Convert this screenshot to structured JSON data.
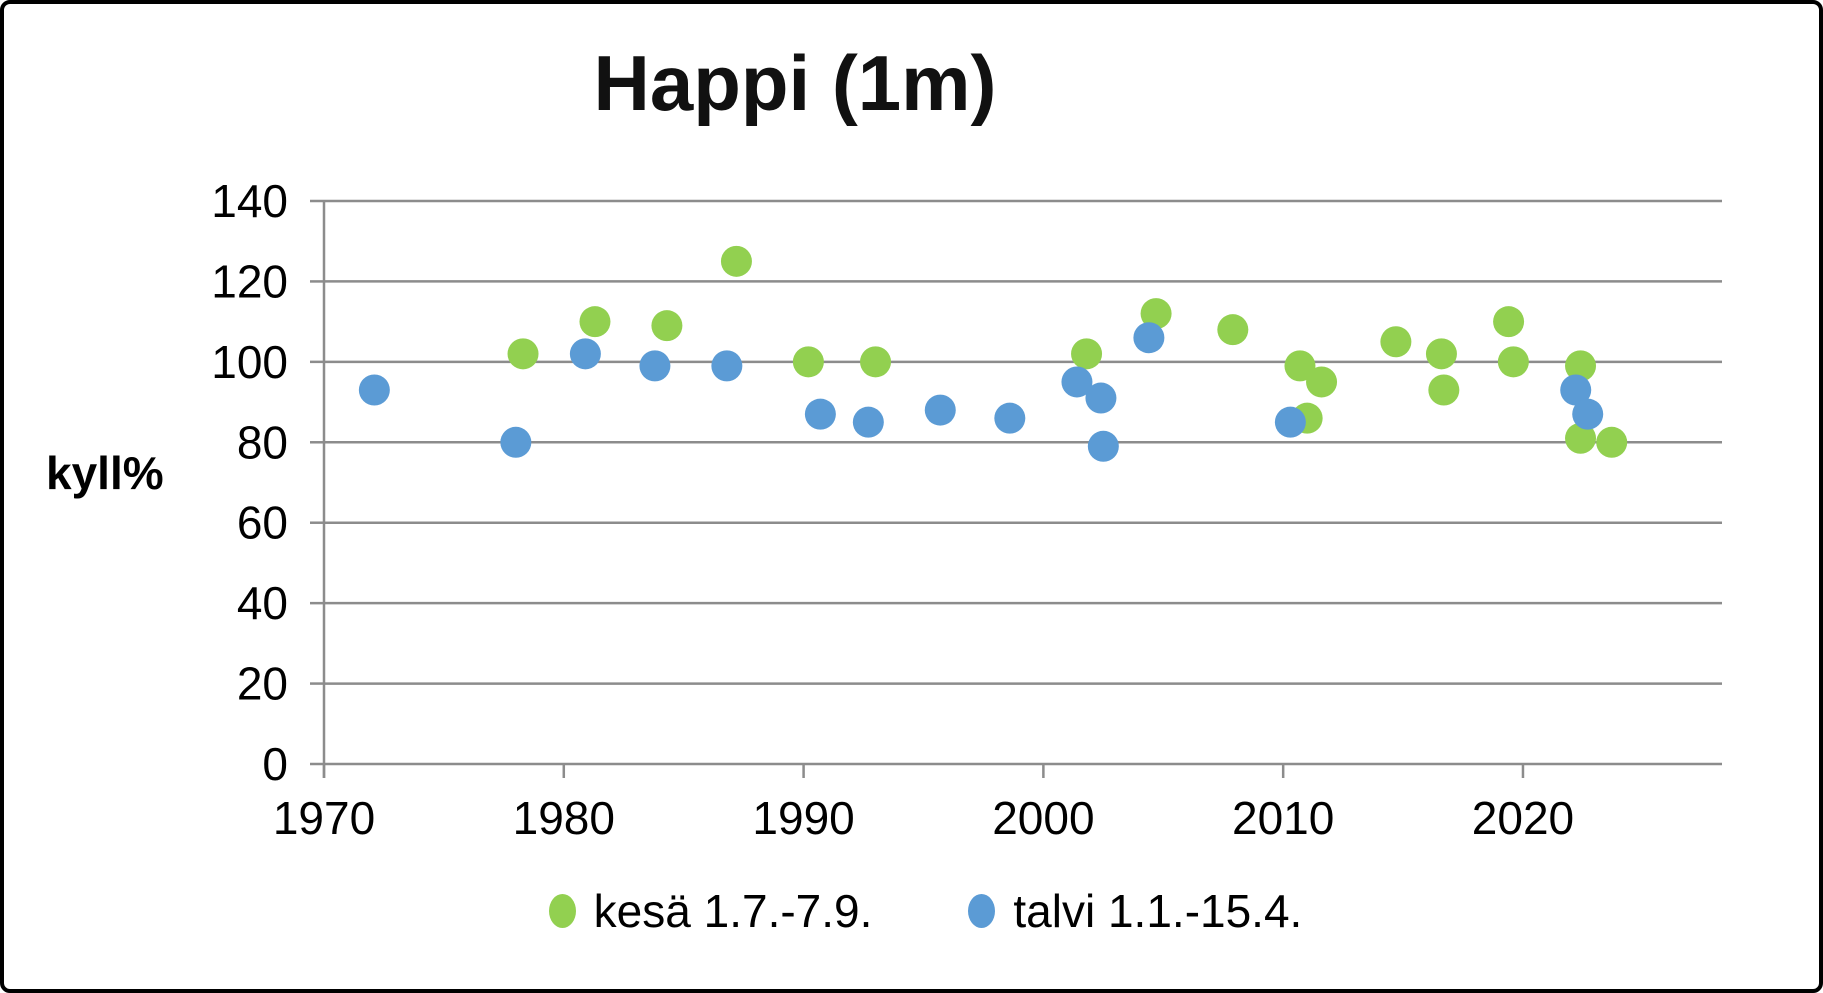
{
  "chart": {
    "title": "Happi (1m)",
    "y_axis_label": "kyll%",
    "legend": [
      {
        "label": "kesä 1.7.-7.9.",
        "color": "#92D050"
      },
      {
        "label": "talvi 1.1.-15.4.",
        "color": "#5B9BD5"
      }
    ]
  },
  "chart_data": {
    "type": "scatter",
    "title": "Happi (1m)",
    "xlabel": "",
    "ylabel": "kyll%",
    "xlim": [
      1970,
      2028.3
    ],
    "ylim": [
      0,
      140
    ],
    "x_ticks": [
      1970,
      1980,
      1990,
      2000,
      2010,
      2020
    ],
    "y_ticks": [
      0,
      20,
      40,
      60,
      80,
      100,
      120,
      140
    ],
    "grid": true,
    "gridline_color": "#8C8C8C",
    "legend_position": "bottom",
    "marker_radius": 15.5,
    "series": [
      {
        "name": "kesä 1.7.-7.9.",
        "color": "#92D050",
        "points": [
          [
            1978.3,
            102
          ],
          [
            1981.3,
            110
          ],
          [
            1984.3,
            109
          ],
          [
            1987.2,
            125
          ],
          [
            1990.2,
            100
          ],
          [
            1993.0,
            100
          ],
          [
            2001.8,
            102
          ],
          [
            2004.7,
            112
          ],
          [
            2007.9,
            108
          ],
          [
            2010.7,
            99
          ],
          [
            2011.0,
            86
          ],
          [
            2011.6,
            95
          ],
          [
            2014.7,
            105
          ],
          [
            2016.6,
            102
          ],
          [
            2016.7,
            93
          ],
          [
            2019.4,
            110
          ],
          [
            2019.6,
            100
          ],
          [
            2022.4,
            99
          ],
          [
            2022.4,
            81
          ],
          [
            2023.7,
            80
          ]
        ]
      },
      {
        "name": "talvi 1.1.-15.4.",
        "color": "#5B9BD5",
        "points": [
          [
            1972.1,
            93
          ],
          [
            1978.0,
            80
          ],
          [
            1980.9,
            102
          ],
          [
            1983.8,
            99
          ],
          [
            1986.8,
            99
          ],
          [
            1990.7,
            87
          ],
          [
            1992.7,
            85
          ],
          [
            1995.7,
            88
          ],
          [
            1998.6,
            86
          ],
          [
            2001.4,
            95
          ],
          [
            2002.4,
            91
          ],
          [
            2002.5,
            79
          ],
          [
            2004.4,
            106
          ],
          [
            2010.3,
            85
          ],
          [
            2022.2,
            93
          ],
          [
            2022.7,
            87
          ]
        ]
      }
    ]
  }
}
